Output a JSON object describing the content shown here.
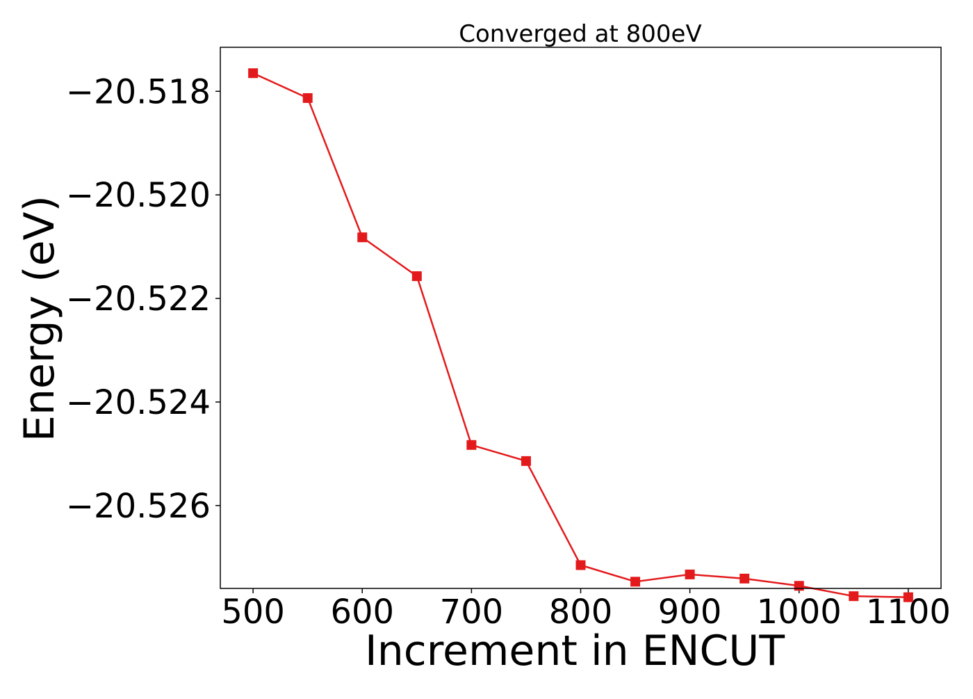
{
  "chart_data": {
    "type": "line",
    "title": "Converged at 800eV",
    "xlabel": "Increment in ENCUT",
    "ylabel": "Energy (eV)",
    "xlim": [
      470,
      1130
    ],
    "ylim": [
      -20.5276,
      -20.51715
    ],
    "xticks": [
      500,
      600,
      700,
      800,
      900,
      1000,
      1100
    ],
    "xtick_labels": [
      "500",
      "600",
      "700",
      "800",
      "900",
      "1000",
      "1100"
    ],
    "yticks": [
      -20.518,
      -20.52,
      -20.522,
      -20.524,
      -20.526
    ],
    "ytick_labels": [
      "−20.518",
      "−20.520",
      "−20.522",
      "−20.524",
      "−20.526"
    ],
    "grid": false,
    "legend": "none",
    "series": [
      {
        "color": "#e31a1c",
        "marker": "square",
        "x": [
          500,
          550,
          600,
          650,
          700,
          750,
          800,
          850,
          900,
          950,
          1000,
          1050,
          1100
        ],
        "y": [
          -20.51765,
          -20.51813,
          -20.52082,
          -20.52157,
          -20.52483,
          -20.52514,
          -20.52715,
          -20.52747,
          -20.52733,
          -20.52741,
          -20.52755,
          -20.52775,
          -20.52777
        ]
      }
    ]
  }
}
